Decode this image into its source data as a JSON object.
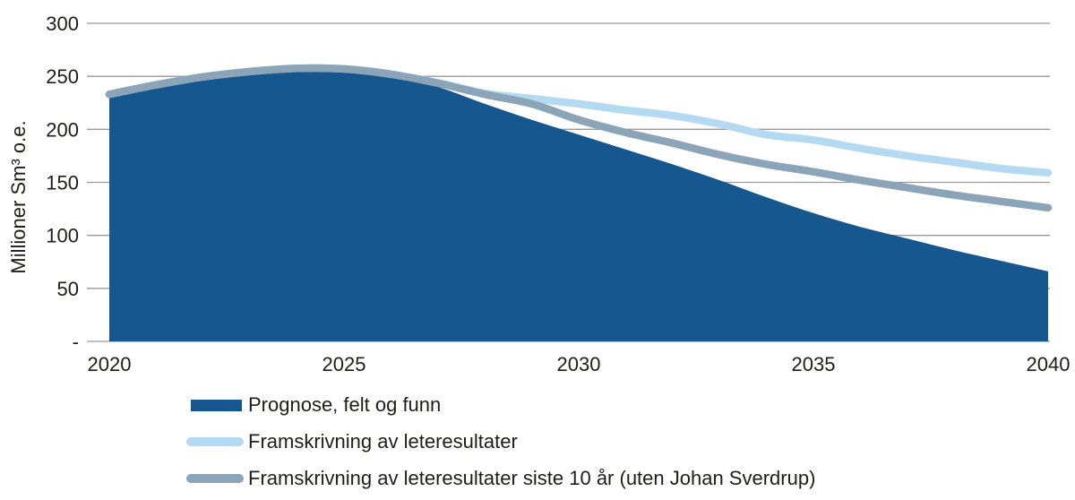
{
  "colors": {
    "grid": "#999999",
    "text": "#1d1d1b",
    "background": "#ffffff"
  },
  "chart_data": {
    "type": "area",
    "title": "",
    "xlabel": "",
    "ylabel": "Millioner Sm³ o.e.",
    "xlim": [
      2020,
      2040
    ],
    "ylim": [
      0,
      300
    ],
    "x_ticks": [
      2020,
      2025,
      2030,
      2035,
      2040
    ],
    "y_ticks": [
      0,
      50,
      100,
      150,
      200,
      250,
      300
    ],
    "y_tick_labels": [
      "-",
      "50",
      "100",
      "150",
      "200",
      "250",
      "300"
    ],
    "grid": "horizontal",
    "legend_position": "bottom-left",
    "x": [
      2020,
      2021,
      2022,
      2023,
      2024,
      2025,
      2026,
      2027,
      2028,
      2029,
      2030,
      2031,
      2032,
      2033,
      2034,
      2035,
      2036,
      2037,
      2038,
      2039,
      2040
    ],
    "series": [
      {
        "name": "Prognose, felt og funn",
        "type": "area",
        "color": "#17578F",
        "values": [
          232,
          241,
          248.5,
          253.5,
          256.5,
          256,
          250.5,
          240,
          224,
          209,
          195,
          181,
          167,
          152,
          136,
          121,
          108,
          97,
          86,
          76,
          66
        ]
      },
      {
        "name": "Framskrivning av leteresultater",
        "type": "line",
        "color": "#B3DAF2",
        "values": [
          233,
          242,
          249.5,
          254.5,
          257.5,
          257,
          252,
          244,
          234,
          229,
          224,
          218,
          213,
          205,
          195,
          190,
          182,
          175,
          169,
          163,
          159
        ]
      },
      {
        "name": "Framskrivning av leteresultater siste 10 år (uten Johan Sverdrup)",
        "type": "line",
        "color": "#8CA4B8",
        "values": [
          233,
          242,
          249.5,
          254.5,
          257.5,
          257,
          252,
          243.5,
          233,
          224,
          209,
          197,
          187,
          176,
          167,
          160,
          152,
          145,
          138,
          132,
          126
        ]
      }
    ]
  }
}
